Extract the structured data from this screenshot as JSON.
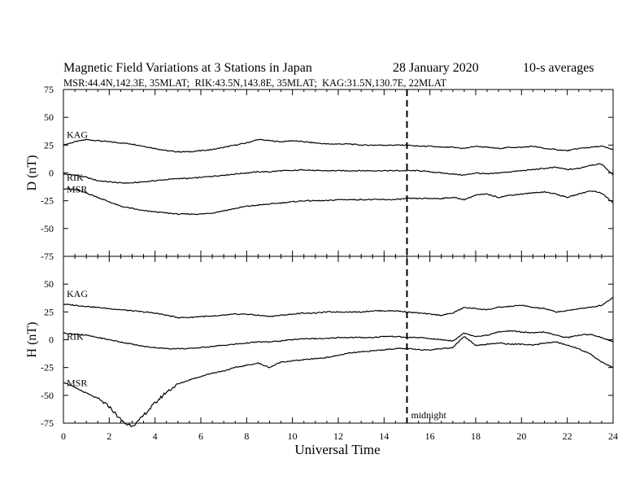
{
  "header": {
    "title": "Magnetic Field Variations at 3 Stations in Japan",
    "date": "28 January 2020",
    "averaging": "10-s averages",
    "stations_line": "MSR:44.4N,142.3E, 35MLAT;  RIK:43.5N,143.8E, 35MLAT;  KAG:31.5N,130.7E, 22MLAT"
  },
  "chart_data": [
    {
      "type": "line",
      "panel": "D",
      "ylabel": "D (nT)",
      "ylim": [
        -75,
        75
      ],
      "yticks": [
        -75,
        -50,
        -25,
        0,
        25,
        50,
        75
      ],
      "xlim": [
        0,
        24
      ],
      "xticks": [
        0,
        2,
        4,
        6,
        8,
        10,
        12,
        14,
        16,
        18,
        20,
        22,
        24
      ],
      "series": [
        {
          "name": "KAG",
          "x": [
            0,
            0.5,
            1,
            1.5,
            2,
            2.5,
            3,
            3.5,
            4,
            4.5,
            5,
            5.5,
            6,
            6.5,
            7,
            7.5,
            8,
            8.5,
            9,
            9.5,
            10,
            10.5,
            11,
            11.5,
            12,
            12.5,
            13,
            13.5,
            14,
            14.5,
            15,
            15.5,
            16,
            16.5,
            17,
            17.5,
            18,
            18.5,
            19,
            19.5,
            20,
            20.5,
            21,
            21.5,
            22,
            22.5,
            23,
            23.5,
            24
          ],
          "y": [
            25,
            28,
            30,
            29,
            28,
            27,
            26,
            24,
            22,
            20,
            19,
            19,
            20,
            21,
            23,
            25,
            27,
            30,
            29,
            28,
            29,
            28,
            27,
            26,
            26,
            26,
            25,
            25,
            25,
            25,
            25,
            24,
            24,
            23,
            23,
            22,
            24,
            23,
            22,
            23,
            23,
            24,
            22,
            21,
            20,
            22,
            23,
            24,
            21
          ]
        },
        {
          "name": "RIK",
          "x": [
            0,
            0.5,
            1,
            1.5,
            2,
            2.5,
            3,
            3.5,
            4,
            4.5,
            5,
            5.5,
            6,
            6.5,
            7,
            7.5,
            8,
            8.5,
            9,
            9.5,
            10,
            10.5,
            11,
            11.5,
            12,
            12.5,
            13,
            13.5,
            14,
            14.5,
            15,
            15.5,
            16,
            16.5,
            17,
            17.5,
            18,
            18.5,
            19,
            19.5,
            20,
            20.5,
            21,
            21.5,
            22,
            22.5,
            23,
            23.5,
            24
          ],
          "y": [
            -1,
            -2,
            -4,
            -7,
            -8,
            -9,
            -9,
            -8,
            -7,
            -6,
            -5,
            -5,
            -4,
            -3,
            -2,
            -1,
            0,
            1,
            1,
            2,
            2,
            3,
            2,
            2,
            2,
            2,
            2,
            2,
            2,
            2,
            2,
            2,
            1,
            0,
            -1,
            -2,
            0,
            -1,
            0,
            1,
            2,
            3,
            4,
            5,
            3,
            4,
            7,
            8,
            -2
          ]
        },
        {
          "name": "MSR",
          "x": [
            0,
            0.5,
            1,
            1.5,
            2,
            2.5,
            3,
            3.5,
            4,
            4.5,
            5,
            5.5,
            6,
            6.5,
            7,
            7.5,
            8,
            8.5,
            9,
            9.5,
            10,
            10.5,
            11,
            11.5,
            12,
            12.5,
            13,
            13.5,
            14,
            14.5,
            15,
            15.5,
            16,
            16.5,
            17,
            17.5,
            18,
            18.5,
            19,
            19.5,
            20,
            20.5,
            21,
            21.5,
            22,
            22.5,
            23,
            23.5,
            24
          ],
          "y": [
            -14,
            -15,
            -18,
            -22,
            -26,
            -30,
            -32,
            -34,
            -35,
            -36,
            -37,
            -37,
            -37,
            -36,
            -34,
            -32,
            -30,
            -29,
            -28,
            -27,
            -26,
            -25,
            -25,
            -25,
            -24,
            -24,
            -24,
            -24,
            -24,
            -24,
            -23,
            -23,
            -23,
            -23,
            -22,
            -24,
            -20,
            -19,
            -22,
            -20,
            -19,
            -18,
            -17,
            -19,
            -22,
            -19,
            -16,
            -18,
            -27
          ]
        }
      ]
    },
    {
      "type": "line",
      "panel": "H",
      "ylabel": "H (nT)",
      "xlabel": "Universal Time",
      "ylim": [
        -75,
        75
      ],
      "yticks": [
        -75,
        -50,
        -25,
        0,
        25,
        50
      ],
      "xlim": [
        0,
        24
      ],
      "xticks": [
        0,
        2,
        4,
        6,
        8,
        10,
        12,
        14,
        16,
        18,
        20,
        22,
        24
      ],
      "series": [
        {
          "name": "KAG",
          "x": [
            0,
            0.5,
            1,
            1.5,
            2,
            2.5,
            3,
            3.5,
            4,
            4.5,
            5,
            5.5,
            6,
            6.5,
            7,
            7.5,
            8,
            8.5,
            9,
            9.5,
            10,
            10.5,
            11,
            11.5,
            12,
            12.5,
            13,
            13.5,
            14,
            14.5,
            15,
            15.5,
            16,
            16.5,
            17,
            17.5,
            18,
            18.5,
            19,
            19.5,
            20,
            20.5,
            21,
            21.5,
            22,
            22.5,
            23,
            23.5,
            24
          ],
          "y": [
            32,
            31,
            30,
            29,
            28,
            27,
            26,
            25,
            24,
            22,
            20,
            20,
            21,
            21,
            22,
            23,
            23,
            22,
            21,
            22,
            23,
            24,
            24,
            25,
            25,
            25,
            25,
            26,
            26,
            26,
            25,
            24,
            23,
            22,
            24,
            29,
            28,
            27,
            29,
            30,
            31,
            29,
            28,
            25,
            26,
            28,
            29,
            31,
            38
          ]
        },
        {
          "name": "RIK",
          "x": [
            0,
            0.5,
            1,
            1.5,
            2,
            2.5,
            3,
            3.5,
            4,
            4.5,
            5,
            5.5,
            6,
            6.5,
            7,
            7.5,
            8,
            8.5,
            9,
            9.5,
            10,
            10.5,
            11,
            11.5,
            12,
            12.5,
            13,
            13.5,
            14,
            14.5,
            15,
            15.5,
            16,
            16.5,
            17,
            17.5,
            18,
            18.5,
            19,
            19.5,
            20,
            20.5,
            21,
            21.5,
            22,
            22.5,
            23,
            23.5,
            24
          ],
          "y": [
            6,
            5,
            4,
            2,
            0,
            -2,
            -4,
            -6,
            -7,
            -8,
            -8,
            -8,
            -7,
            -6,
            -5,
            -4,
            -3,
            -2,
            -2,
            -1,
            0,
            1,
            1,
            1,
            2,
            2,
            2,
            2,
            3,
            3,
            2,
            2,
            1,
            0,
            -1,
            6,
            3,
            4,
            7,
            8,
            7,
            6,
            7,
            4,
            2,
            4,
            5,
            2,
            -2
          ]
        },
        {
          "name": "MSR",
          "x": [
            0,
            0.5,
            1,
            1.5,
            2,
            2.25,
            2.5,
            2.75,
            3,
            3.25,
            3.5,
            4,
            4.5,
            5,
            5.5,
            6,
            6.5,
            7,
            7.5,
            8,
            8.5,
            9,
            9.5,
            10,
            10.5,
            11,
            11.5,
            12,
            12.5,
            13,
            13.5,
            14,
            14.5,
            15,
            15.5,
            16,
            16.5,
            17,
            17.5,
            18,
            18.5,
            19,
            19.5,
            20,
            20.5,
            21,
            21.5,
            22,
            22.5,
            23,
            23.5,
            24
          ],
          "y": [
            -38,
            -43,
            -48,
            -53,
            -60,
            -66,
            -72,
            -76,
            -77,
            -74,
            -68,
            -57,
            -47,
            -40,
            -36,
            -33,
            -30,
            -28,
            -25,
            -23,
            -21,
            -25,
            -20,
            -19,
            -18,
            -17,
            -16,
            -14,
            -12,
            -11,
            -10,
            -9,
            -8,
            -8,
            -9,
            -9,
            -8,
            -7,
            3,
            -5,
            -4,
            -3,
            -4,
            -4,
            -5,
            -3,
            -2,
            -5,
            -8,
            -13,
            -20,
            -25
          ]
        }
      ]
    }
  ],
  "marker": {
    "x": 15,
    "label": "midnight"
  },
  "colors": {
    "line": "#000000",
    "background": "#ffffff"
  }
}
